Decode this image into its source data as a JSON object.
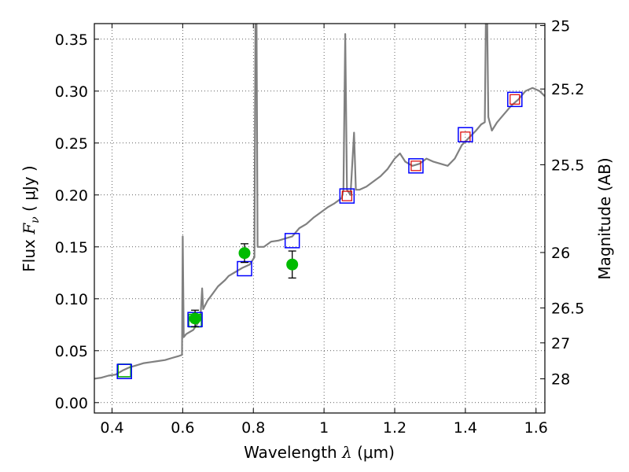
{
  "chart_data": {
    "type": "scatter",
    "xlabel": {
      "prefix": "Wavelength  ",
      "symbol": "λ",
      "unit": " (μm)"
    },
    "ylabel": {
      "prefix": "Flux  ",
      "symbol": "F",
      "sub": "ν",
      "unit": "  ( μJy )"
    },
    "ylabel_right": "Magnitude (AB)",
    "xlim": [
      0.35,
      1.625
    ],
    "ylim": [
      -0.01,
      0.365
    ],
    "x_ticks": [
      0.4,
      0.6,
      0.8,
      1.0,
      1.2,
      1.4,
      1.6
    ],
    "x_tick_labels": [
      "0.4",
      "0.6",
      "0.8",
      "1",
      "1.2",
      "1.4",
      "1.6"
    ],
    "y_ticks": [
      0.0,
      0.05,
      0.1,
      0.15,
      0.2,
      0.25,
      0.3,
      0.35
    ],
    "y_tick_labels": [
      "0.00",
      "0.05",
      "0.10",
      "0.15",
      "0.20",
      "0.25",
      "0.30",
      "0.35"
    ],
    "right_ticks": [
      {
        "mag": 25,
        "label": "25"
      },
      {
        "mag": 25.2,
        "label": "25.2"
      },
      {
        "mag": 25.5,
        "label": "25.5"
      },
      {
        "mag": 26,
        "label": "26"
      },
      {
        "mag": 26.5,
        "label": "26.5"
      },
      {
        "mag": 27,
        "label": "27"
      },
      {
        "mag": 28,
        "label": "28"
      }
    ],
    "grid": true,
    "colors": {
      "model": "#808080",
      "observed": "#00bb00",
      "model_band": "#0000ff",
      "synthetic_band": "#dd0000",
      "sed_band": "#00aa00"
    },
    "series": [
      {
        "kind": "spectrum",
        "points": [
          [
            0.35,
            0.023
          ],
          [
            0.37,
            0.024
          ],
          [
            0.39,
            0.026
          ],
          [
            0.41,
            0.027
          ],
          [
            0.43,
            0.031
          ],
          [
            0.45,
            0.034
          ],
          [
            0.47,
            0.036
          ],
          [
            0.49,
            0.038
          ],
          [
            0.51,
            0.039
          ],
          [
            0.53,
            0.04
          ],
          [
            0.55,
            0.041
          ],
          [
            0.57,
            0.043
          ],
          [
            0.59,
            0.045
          ],
          [
            0.598,
            0.046
          ],
          [
            0.6,
            0.16
          ],
          [
            0.603,
            0.063
          ],
          [
            0.61,
            0.066
          ],
          [
            0.62,
            0.068
          ],
          [
            0.63,
            0.07
          ],
          [
            0.64,
            0.075
          ],
          [
            0.65,
            0.08
          ],
          [
            0.655,
            0.11
          ],
          [
            0.658,
            0.09
          ],
          [
            0.67,
            0.098
          ],
          [
            0.685,
            0.105
          ],
          [
            0.7,
            0.112
          ],
          [
            0.72,
            0.118
          ],
          [
            0.73,
            0.122
          ],
          [
            0.75,
            0.126
          ],
          [
            0.77,
            0.13
          ],
          [
            0.79,
            0.133
          ],
          [
            0.803,
            0.14
          ],
          [
            0.806,
            0.365
          ],
          [
            0.809,
            0.365
          ],
          [
            0.812,
            0.15
          ],
          [
            0.83,
            0.15
          ],
          [
            0.85,
            0.155
          ],
          [
            0.87,
            0.156
          ],
          [
            0.89,
            0.158
          ],
          [
            0.91,
            0.16
          ],
          [
            0.93,
            0.168
          ],
          [
            0.95,
            0.172
          ],
          [
            0.97,
            0.178
          ],
          [
            0.99,
            0.183
          ],
          [
            1.01,
            0.188
          ],
          [
            1.03,
            0.192
          ],
          [
            1.05,
            0.197
          ],
          [
            1.055,
            0.205
          ],
          [
            1.06,
            0.355
          ],
          [
            1.065,
            0.205
          ],
          [
            1.075,
            0.2
          ],
          [
            1.085,
            0.26
          ],
          [
            1.09,
            0.205
          ],
          [
            1.1,
            0.205
          ],
          [
            1.12,
            0.208
          ],
          [
            1.14,
            0.213
          ],
          [
            1.16,
            0.218
          ],
          [
            1.18,
            0.225
          ],
          [
            1.2,
            0.235
          ],
          [
            1.215,
            0.24
          ],
          [
            1.23,
            0.232
          ],
          [
            1.25,
            0.228
          ],
          [
            1.27,
            0.23
          ],
          [
            1.29,
            0.235
          ],
          [
            1.31,
            0.232
          ],
          [
            1.33,
            0.23
          ],
          [
            1.35,
            0.228
          ],
          [
            1.37,
            0.235
          ],
          [
            1.39,
            0.248
          ],
          [
            1.41,
            0.255
          ],
          [
            1.43,
            0.262
          ],
          [
            1.445,
            0.268
          ],
          [
            1.455,
            0.27
          ],
          [
            1.458,
            0.365
          ],
          [
            1.462,
            0.365
          ],
          [
            1.465,
            0.275
          ],
          [
            1.475,
            0.262
          ],
          [
            1.49,
            0.27
          ],
          [
            1.51,
            0.278
          ],
          [
            1.53,
            0.286
          ],
          [
            1.55,
            0.292
          ],
          [
            1.57,
            0.3
          ],
          [
            1.59,
            0.303
          ],
          [
            1.61,
            0.3
          ],
          [
            1.625,
            0.295
          ]
        ]
      },
      {
        "kind": "model_bands",
        "points": [
          [
            0.435,
            0.03
          ],
          [
            0.635,
            0.08
          ],
          [
            0.775,
            0.129
          ],
          [
            0.91,
            0.156
          ],
          [
            1.065,
            0.199
          ],
          [
            1.26,
            0.228
          ],
          [
            1.4,
            0.258
          ],
          [
            1.54,
            0.292
          ]
        ]
      },
      {
        "kind": "synthetic_bands",
        "points": [
          [
            1.065,
            0.199
          ],
          [
            1.26,
            0.228
          ],
          [
            1.4,
            0.256
          ],
          [
            1.54,
            0.292
          ]
        ]
      },
      {
        "kind": "sed_bands",
        "points": [
          [
            0.435,
            0.031
          ],
          [
            0.635,
            0.079
          ]
        ]
      },
      {
        "kind": "observed",
        "points": [
          {
            "x": 0.635,
            "y": 0.081,
            "err": 0.008
          },
          {
            "x": 0.775,
            "y": 0.144,
            "err": 0.009
          },
          {
            "x": 0.91,
            "y": 0.133,
            "err": 0.013
          }
        ]
      }
    ]
  }
}
